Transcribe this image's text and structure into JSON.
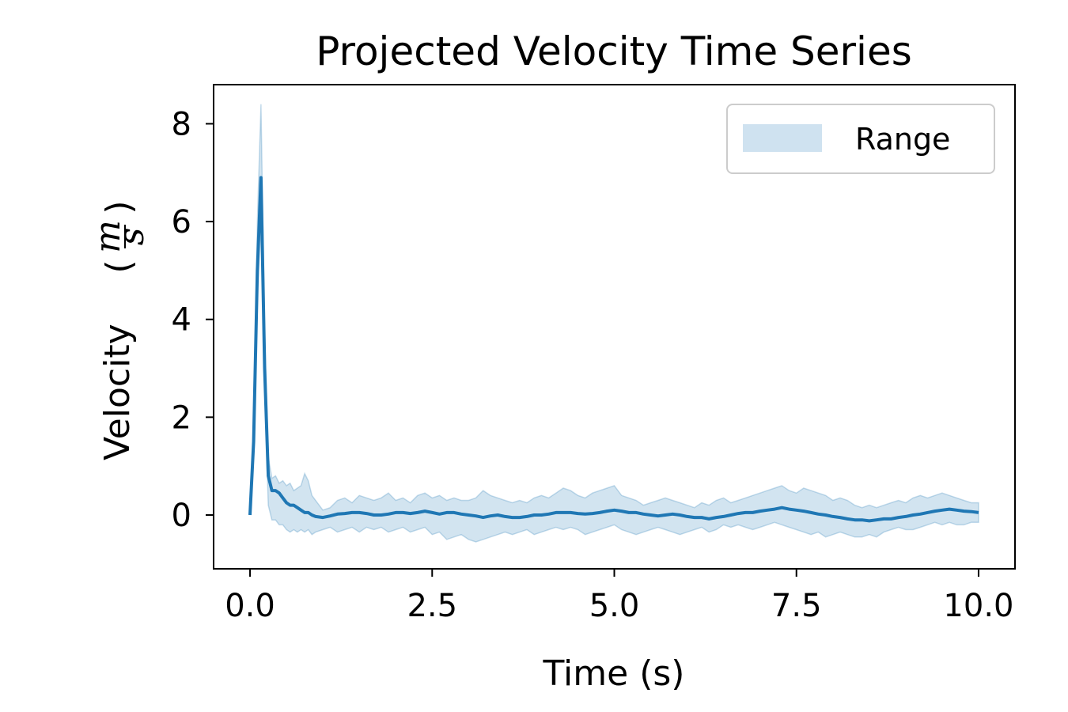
{
  "chart_data": {
    "type": "line",
    "title": "Projected Velocity Time Series",
    "xlabel": "Time (s)",
    "ylabel": "Velocity",
    "ylabel_unit_numerator": "m",
    "ylabel_unit_denominator": "s",
    "xlim": [
      -0.5,
      10.5
    ],
    "ylim": [
      -1.1,
      8.8
    ],
    "x_ticks": [
      0.0,
      2.5,
      5.0,
      7.5,
      10.0
    ],
    "x_tick_labels": [
      "0.0",
      "2.5",
      "5.0",
      "7.5",
      "10.0"
    ],
    "y_ticks": [
      0,
      2,
      4,
      6,
      8
    ],
    "y_tick_labels": [
      "0",
      "2",
      "4",
      "6",
      "8"
    ],
    "grid": false,
    "legend": {
      "placement": "top-right",
      "entries": [
        {
          "label": "Range",
          "color": "#cfe2f0"
        }
      ]
    },
    "line_color": "#1f77b4",
    "band_color": "#1f77b4",
    "series": [
      {
        "name": "",
        "x": [
          0.0,
          0.05,
          0.1,
          0.15,
          0.2,
          0.25,
          0.3,
          0.35,
          0.4,
          0.45,
          0.5,
          0.55,
          0.6,
          0.65,
          0.7,
          0.75,
          0.8,
          0.85,
          0.9,
          1.0,
          1.1,
          1.2,
          1.3,
          1.4,
          1.5,
          1.6,
          1.7,
          1.8,
          1.9,
          2.0,
          2.1,
          2.2,
          2.3,
          2.4,
          2.5,
          2.6,
          2.7,
          2.8,
          2.9,
          3.0,
          3.1,
          3.2,
          3.3,
          3.4,
          3.5,
          3.6,
          3.7,
          3.8,
          3.9,
          4.0,
          4.1,
          4.2,
          4.3,
          4.4,
          4.5,
          4.6,
          4.7,
          4.8,
          4.9,
          5.0,
          5.1,
          5.2,
          5.3,
          5.4,
          5.5,
          5.6,
          5.7,
          5.8,
          5.9,
          6.0,
          6.1,
          6.2,
          6.3,
          6.4,
          6.5,
          6.6,
          6.7,
          6.8,
          6.9,
          7.0,
          7.1,
          7.2,
          7.3,
          7.4,
          7.5,
          7.6,
          7.7,
          7.8,
          7.9,
          8.0,
          8.1,
          8.2,
          8.3,
          8.4,
          8.5,
          8.6,
          8.7,
          8.8,
          8.9,
          9.0,
          9.1,
          9.2,
          9.3,
          9.4,
          9.5,
          9.6,
          9.7,
          9.8,
          9.9,
          10.0
        ],
        "values": [
          0.0,
          1.5,
          5.0,
          6.9,
          3.0,
          0.8,
          0.5,
          0.5,
          0.45,
          0.35,
          0.25,
          0.2,
          0.2,
          0.15,
          0.1,
          0.05,
          0.05,
          0.0,
          -0.03,
          -0.05,
          -0.02,
          0.02,
          0.03,
          0.05,
          0.05,
          0.03,
          0.0,
          0.0,
          0.02,
          0.05,
          0.05,
          0.03,
          0.05,
          0.08,
          0.05,
          0.02,
          0.05,
          0.05,
          0.02,
          0.0,
          -0.02,
          -0.05,
          -0.02,
          0.0,
          -0.03,
          -0.05,
          -0.05,
          -0.03,
          0.0,
          0.0,
          0.02,
          0.05,
          0.05,
          0.05,
          0.03,
          0.02,
          0.03,
          0.05,
          0.08,
          0.1,
          0.08,
          0.05,
          0.05,
          0.02,
          0.0,
          -0.02,
          0.0,
          0.02,
          0.0,
          -0.03,
          -0.05,
          -0.05,
          -0.08,
          -0.05,
          -0.03,
          0.0,
          0.03,
          0.05,
          0.05,
          0.08,
          0.1,
          0.12,
          0.15,
          0.12,
          0.1,
          0.08,
          0.05,
          0.02,
          0.0,
          -0.03,
          -0.05,
          -0.08,
          -0.1,
          -0.1,
          -0.12,
          -0.1,
          -0.08,
          -0.08,
          -0.05,
          -0.03,
          0.0,
          0.02,
          0.05,
          0.08,
          0.1,
          0.12,
          0.1,
          0.08,
          0.07,
          0.05
        ],
        "lower": [
          0.0,
          1.3,
          4.5,
          6.0,
          2.6,
          0.2,
          -0.1,
          -0.1,
          -0.2,
          -0.2,
          -0.3,
          -0.35,
          -0.3,
          -0.35,
          -0.3,
          -0.35,
          -0.3,
          -0.4,
          -0.35,
          -0.3,
          -0.25,
          -0.35,
          -0.3,
          -0.25,
          -0.35,
          -0.25,
          -0.3,
          -0.25,
          -0.35,
          -0.3,
          -0.25,
          -0.35,
          -0.3,
          -0.25,
          -0.4,
          -0.35,
          -0.5,
          -0.45,
          -0.4,
          -0.5,
          -0.55,
          -0.5,
          -0.45,
          -0.4,
          -0.35,
          -0.4,
          -0.35,
          -0.3,
          -0.4,
          -0.35,
          -0.3,
          -0.25,
          -0.3,
          -0.25,
          -0.3,
          -0.4,
          -0.35,
          -0.3,
          -0.25,
          -0.2,
          -0.3,
          -0.35,
          -0.4,
          -0.35,
          -0.3,
          -0.25,
          -0.3,
          -0.35,
          -0.4,
          -0.35,
          -0.3,
          -0.25,
          -0.35,
          -0.3,
          -0.2,
          -0.25,
          -0.2,
          -0.25,
          -0.3,
          -0.25,
          -0.2,
          -0.15,
          -0.2,
          -0.25,
          -0.3,
          -0.35,
          -0.4,
          -0.35,
          -0.45,
          -0.4,
          -0.35,
          -0.4,
          -0.45,
          -0.45,
          -0.4,
          -0.45,
          -0.35,
          -0.3,
          -0.25,
          -0.3,
          -0.3,
          -0.25,
          -0.2,
          -0.15,
          -0.2,
          -0.15,
          -0.2,
          -0.2,
          -0.15,
          -0.15
        ],
        "upper": [
          0.0,
          1.8,
          6.0,
          8.4,
          3.8,
          1.2,
          0.75,
          0.8,
          0.65,
          0.7,
          0.6,
          0.65,
          0.5,
          0.55,
          0.6,
          0.85,
          0.7,
          0.4,
          0.3,
          0.1,
          0.15,
          0.3,
          0.35,
          0.25,
          0.4,
          0.35,
          0.3,
          0.35,
          0.45,
          0.3,
          0.35,
          0.25,
          0.4,
          0.45,
          0.35,
          0.4,
          0.3,
          0.35,
          0.3,
          0.3,
          0.35,
          0.5,
          0.4,
          0.35,
          0.3,
          0.25,
          0.3,
          0.25,
          0.35,
          0.4,
          0.35,
          0.45,
          0.55,
          0.5,
          0.4,
          0.35,
          0.45,
          0.5,
          0.55,
          0.6,
          0.4,
          0.35,
          0.3,
          0.2,
          0.25,
          0.3,
          0.35,
          0.3,
          0.25,
          0.2,
          0.15,
          0.25,
          0.2,
          0.3,
          0.35,
          0.25,
          0.3,
          0.35,
          0.4,
          0.45,
          0.5,
          0.55,
          0.6,
          0.5,
          0.45,
          0.55,
          0.5,
          0.45,
          0.4,
          0.3,
          0.35,
          0.3,
          0.2,
          0.15,
          0.2,
          0.15,
          0.2,
          0.25,
          0.3,
          0.25,
          0.35,
          0.4,
          0.35,
          0.4,
          0.45,
          0.4,
          0.35,
          0.3,
          0.25,
          0.25
        ]
      }
    ]
  }
}
